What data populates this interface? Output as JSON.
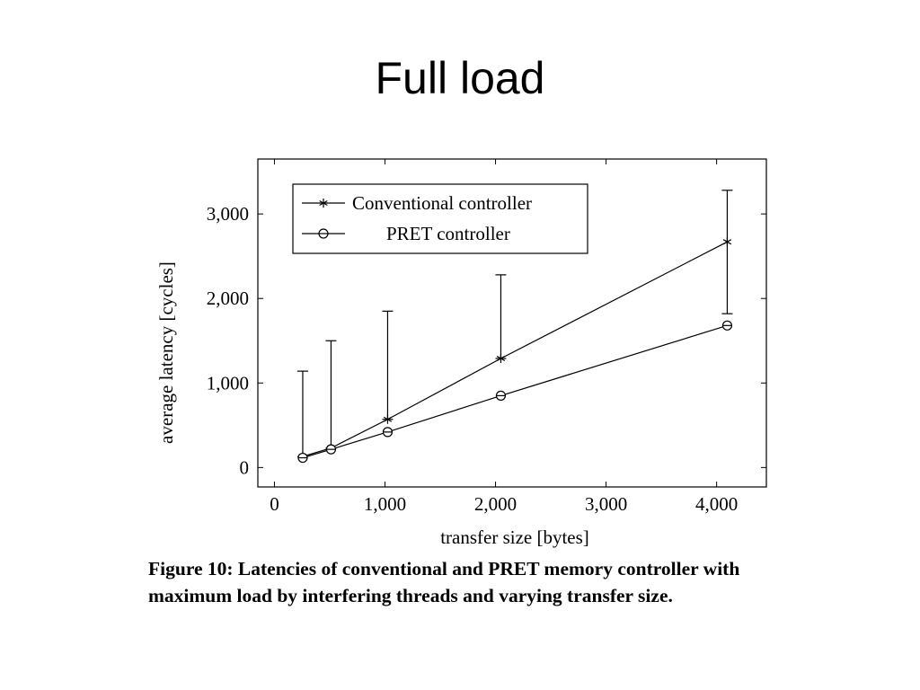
{
  "slide": {
    "title": "Full load"
  },
  "figure": {
    "caption": "Figure 10: Latencies of conventional and PRET memory controller with maximum load by interfering threads and varying transfer size."
  },
  "chart_data": {
    "type": "line",
    "title": "",
    "xlabel": "transfer size [bytes]",
    "ylabel": "average latency [cycles]",
    "xlim": [
      -150,
      4450
    ],
    "ylim": [
      -230,
      3650
    ],
    "xticks": [
      0,
      1000,
      2000,
      3000,
      4000
    ],
    "xtick_labels": [
      "0",
      "1,000",
      "2,000",
      "3,000",
      "4,000"
    ],
    "yticks": [
      0,
      1000,
      2000,
      3000
    ],
    "ytick_labels": [
      "0",
      "1,000",
      "2,000",
      "3,000"
    ],
    "grid": false,
    "legend_position": "top-left",
    "series": [
      {
        "name": "Conventional controller",
        "marker": "star",
        "x": [
          256,
          512,
          1024,
          2048,
          4096
        ],
        "y": [
          130,
          230,
          570,
          1290,
          2670
        ],
        "err_low": [
          0,
          0,
          0,
          0,
          850
        ],
        "err_high": [
          1010,
          1270,
          1280,
          990,
          610
        ]
      },
      {
        "name": "PRET controller",
        "marker": "circle",
        "x": [
          256,
          512,
          1024,
          2048,
          4096
        ],
        "y": [
          115,
          215,
          420,
          850,
          1680
        ]
      }
    ]
  }
}
